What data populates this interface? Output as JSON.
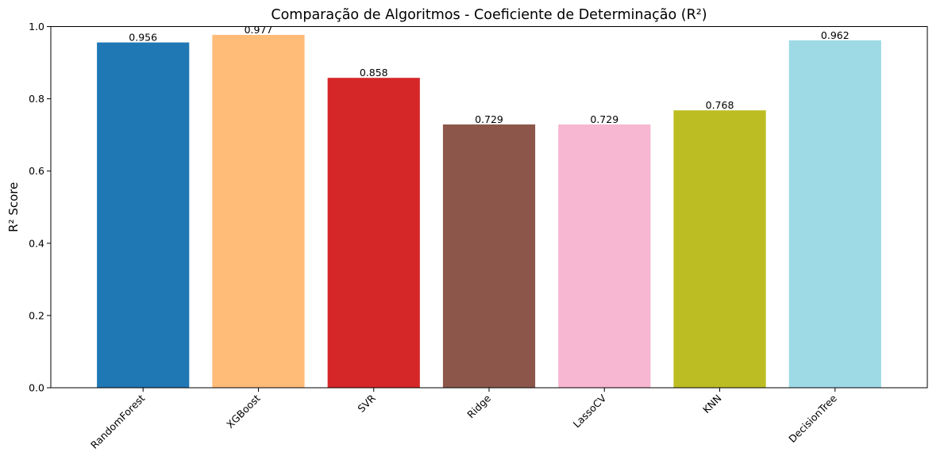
{
  "chart_data": {
    "type": "bar",
    "title": "Comparação de Algoritmos - Coeficiente de Determinação (R²)",
    "xlabel": "",
    "ylabel": "R² Score",
    "categories": [
      "RandomForest",
      "XGBoost",
      "SVR",
      "Ridge",
      "LassoCV",
      "KNN",
      "DecisionTree"
    ],
    "values": [
      0.956,
      0.977,
      0.858,
      0.729,
      0.729,
      0.768,
      0.962
    ],
    "value_labels": [
      "0.956",
      "0.977",
      "0.858",
      "0.729",
      "0.729",
      "0.768",
      "0.962"
    ],
    "colors": [
      "#1f77b4",
      "#ffbb78",
      "#d62728",
      "#8c564b",
      "#f7b6d2",
      "#bcbd22",
      "#9edae5"
    ],
    "ylim": [
      0,
      1.0
    ],
    "yticks": [
      0.0,
      0.2,
      0.4,
      0.6,
      0.8,
      1.0
    ],
    "ytick_labels": [
      "0.0",
      "0.2",
      "0.4",
      "0.6",
      "0.8",
      "1.0"
    ],
    "grid": false,
    "legend": "none",
    "xtick_rotation_deg": 45
  }
}
